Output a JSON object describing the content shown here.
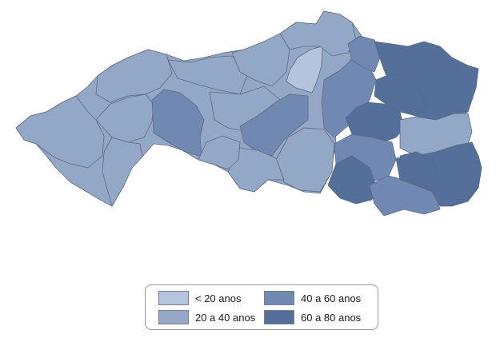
{
  "legend": {
    "items": [
      {
        "label": "< 20 anos",
        "color": "#b3c4dc"
      },
      {
        "label": "20 a 40 anos",
        "color": "#93a7c6"
      },
      {
        "label": "40 a 60 anos",
        "color": "#7189b2"
      },
      {
        "label": "60 a 80 anos",
        "color": "#536f9a"
      }
    ]
  },
  "colors": {
    "border": "#5e6b80",
    "background": "#ffffff"
  }
}
